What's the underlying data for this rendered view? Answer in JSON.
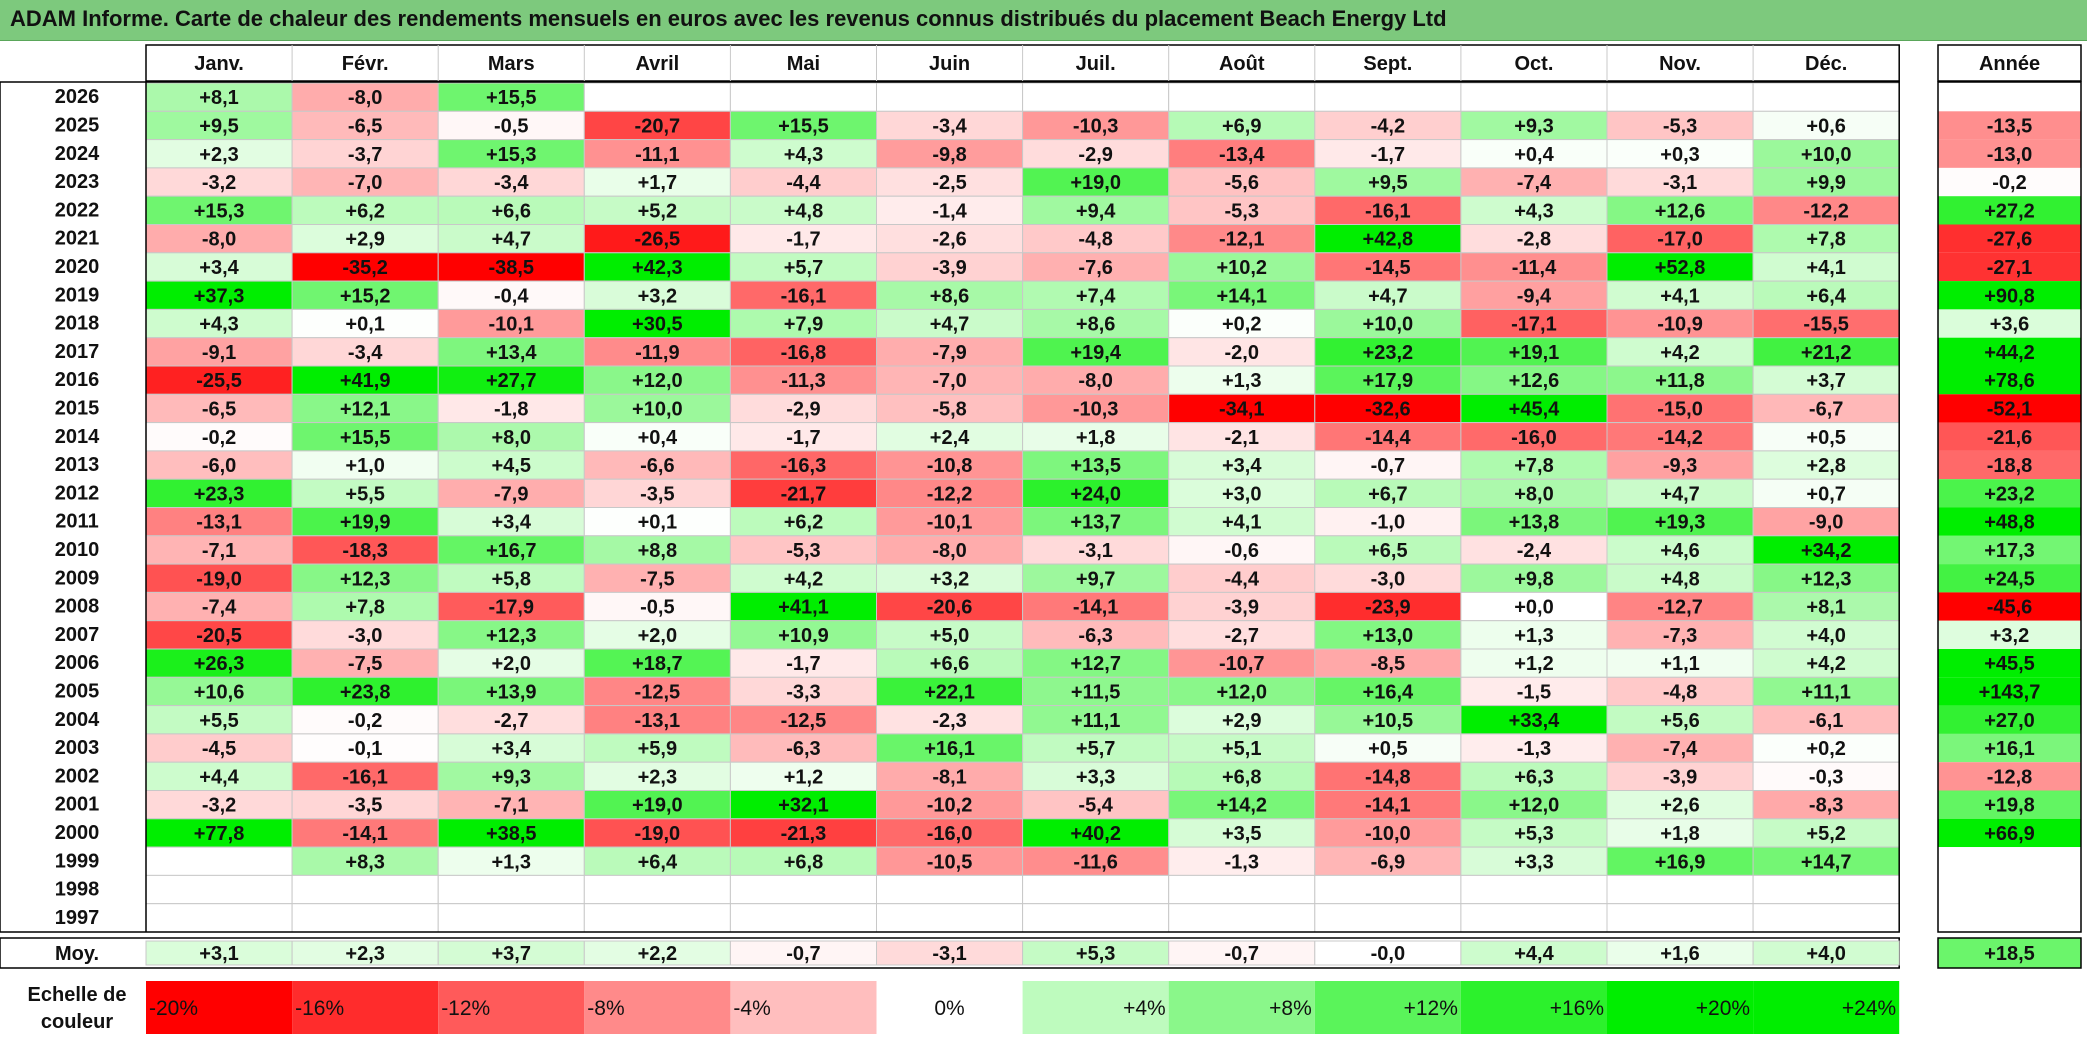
{
  "title": "ADAM Informe. Carte de chaleur des rendements mensuels en euros avec les revenus connus distribués du placement Beach Energy Ltd",
  "chart_data": {
    "type": "heatmap",
    "months": [
      "Janv.",
      "Févr.",
      "Mars",
      "Avril",
      "Mai",
      "Juin",
      "Juil.",
      "Août",
      "Sept.",
      "Oct.",
      "Nov.",
      "Déc."
    ],
    "year_header": "Année",
    "years": [
      "2026",
      "2025",
      "2024",
      "2023",
      "2022",
      "2021",
      "2020",
      "2019",
      "2018",
      "2017",
      "2016",
      "2015",
      "2014",
      "2013",
      "2012",
      "2011",
      "2010",
      "2009",
      "2008",
      "2007",
      "2006",
      "2005",
      "2004",
      "2003",
      "2002",
      "2001",
      "2000",
      "1999",
      "1998",
      "1997"
    ],
    "values": [
      [
        "+8,1",
        "-8,0",
        "+15,5",
        "",
        "",
        "",
        "",
        "",
        "",
        "",
        "",
        ""
      ],
      [
        "+9,5",
        "-6,5",
        "-0,5",
        "-20,7",
        "+15,5",
        "-3,4",
        "-10,3",
        "+6,9",
        "-4,2",
        "+9,3",
        "-5,3",
        "+0,6"
      ],
      [
        "+2,3",
        "-3,7",
        "+15,3",
        "-11,1",
        "+4,3",
        "-9,8",
        "-2,9",
        "-13,4",
        "-1,7",
        "+0,4",
        "+0,3",
        "+10,0"
      ],
      [
        "-3,2",
        "-7,0",
        "-3,4",
        "+1,7",
        "-4,4",
        "-2,5",
        "+19,0",
        "-5,6",
        "+9,5",
        "-7,4",
        "-3,1",
        "+9,9"
      ],
      [
        "+15,3",
        "+6,2",
        "+6,6",
        "+5,2",
        "+4,8",
        "-1,4",
        "+9,4",
        "-5,3",
        "-16,1",
        "+4,3",
        "+12,6",
        "-12,2"
      ],
      [
        "-8,0",
        "+2,9",
        "+4,7",
        "-26,5",
        "-1,7",
        "-2,6",
        "-4,8",
        "-12,1",
        "+42,8",
        "-2,8",
        "-17,0",
        "+7,8"
      ],
      [
        "+3,4",
        "-35,2",
        "-38,5",
        "+42,3",
        "+5,7",
        "-3,9",
        "-7,6",
        "+10,2",
        "-14,5",
        "-11,4",
        "+52,8",
        "+4,1"
      ],
      [
        "+37,3",
        "+15,2",
        "-0,4",
        "+3,2",
        "-16,1",
        "+8,6",
        "+7,4",
        "+14,1",
        "+4,7",
        "-9,4",
        "+4,1",
        "+6,4"
      ],
      [
        "+4,3",
        "+0,1",
        "-10,1",
        "+30,5",
        "+7,9",
        "+4,7",
        "+8,6",
        "+0,2",
        "+10,0",
        "-17,1",
        "-10,9",
        "-15,5"
      ],
      [
        "-9,1",
        "-3,4",
        "+13,4",
        "-11,9",
        "-16,8",
        "-7,9",
        "+19,4",
        "-2,0",
        "+23,2",
        "+19,1",
        "+4,2",
        "+21,2"
      ],
      [
        "-25,5",
        "+41,9",
        "+27,7",
        "+12,0",
        "-11,3",
        "-7,0",
        "-8,0",
        "+1,3",
        "+17,9",
        "+12,6",
        "+11,8",
        "+3,7"
      ],
      [
        "-6,5",
        "+12,1",
        "-1,8",
        "+10,0",
        "-2,9",
        "-5,8",
        "-10,3",
        "-34,1",
        "-32,6",
        "+45,4",
        "-15,0",
        "-6,7"
      ],
      [
        "-0,2",
        "+15,5",
        "+8,0",
        "+0,4",
        "-1,7",
        "+2,4",
        "+1,8",
        "-2,1",
        "-14,4",
        "-16,0",
        "-14,2",
        "+0,5"
      ],
      [
        "-6,0",
        "+1,0",
        "+4,5",
        "-6,6",
        "-16,3",
        "-10,8",
        "+13,5",
        "+3,4",
        "-0,7",
        "+7,8",
        "-9,3",
        "+2,8"
      ],
      [
        "+23,3",
        "+5,5",
        "-7,9",
        "-3,5",
        "-21,7",
        "-12,2",
        "+24,0",
        "+3,0",
        "+6,7",
        "+8,0",
        "+4,7",
        "+0,7"
      ],
      [
        "-13,1",
        "+19,9",
        "+3,4",
        "+0,1",
        "+6,2",
        "-10,1",
        "+13,7",
        "+4,1",
        "-1,0",
        "+13,8",
        "+19,3",
        "-9,0"
      ],
      [
        "-7,1",
        "-18,3",
        "+16,7",
        "+8,8",
        "-5,3",
        "-8,0",
        "-3,1",
        "-0,6",
        "+6,5",
        "-2,4",
        "+4,6",
        "+34,2"
      ],
      [
        "-19,0",
        "+12,3",
        "+5,8",
        "-7,5",
        "+4,2",
        "+3,2",
        "+9,7",
        "-4,4",
        "-3,0",
        "+9,8",
        "+4,8",
        "+12,3"
      ],
      [
        "-7,4",
        "+7,8",
        "-17,9",
        "-0,5",
        "+41,1",
        "-20,6",
        "-14,1",
        "-3,9",
        "-23,9",
        "+0,0",
        "-12,7",
        "+8,1"
      ],
      [
        "-20,5",
        "-3,0",
        "+12,3",
        "+2,0",
        "+10,9",
        "+5,0",
        "-6,3",
        "-2,7",
        "+13,0",
        "+1,3",
        "-7,3",
        "+4,0"
      ],
      [
        "+26,3",
        "-7,5",
        "+2,0",
        "+18,7",
        "-1,7",
        "+6,6",
        "+12,7",
        "-10,7",
        "-8,5",
        "+1,2",
        "+1,1",
        "+4,2"
      ],
      [
        "+10,6",
        "+23,8",
        "+13,9",
        "-12,5",
        "-3,3",
        "+22,1",
        "+11,5",
        "+12,0",
        "+16,4",
        "-1,5",
        "-4,8",
        "+11,1"
      ],
      [
        "+5,5",
        "-0,2",
        "-2,7",
        "-13,1",
        "-12,5",
        "-2,3",
        "+11,1",
        "+2,9",
        "+10,5",
        "+33,4",
        "+5,6",
        "-6,1"
      ],
      [
        "-4,5",
        "-0,1",
        "+3,4",
        "+5,9",
        "-6,3",
        "+16,1",
        "+5,7",
        "+5,1",
        "+0,5",
        "-1,3",
        "-7,4",
        "+0,2"
      ],
      [
        "+4,4",
        "-16,1",
        "+9,3",
        "+2,3",
        "+1,2",
        "-8,1",
        "+3,3",
        "+6,8",
        "-14,8",
        "+6,3",
        "-3,9",
        "-0,3"
      ],
      [
        "-3,2",
        "-3,5",
        "-7,1",
        "+19,0",
        "+32,1",
        "-10,2",
        "-5,4",
        "+14,2",
        "-14,1",
        "+12,0",
        "+2,6",
        "-8,3"
      ],
      [
        "+77,8",
        "-14,1",
        "+38,5",
        "-19,0",
        "-21,3",
        "-16,0",
        "+40,2",
        "+3,5",
        "-10,0",
        "+5,3",
        "+1,8",
        "+5,2"
      ],
      [
        "",
        "+8,3",
        "+1,3",
        "+6,4",
        "+6,8",
        "-10,5",
        "-11,6",
        "-1,3",
        "-6,9",
        "+3,3",
        "+16,9",
        "+14,7"
      ],
      [
        "",
        "",
        "",
        "",
        "",
        "",
        "",
        "",
        "",
        "",
        "",
        ""
      ],
      [
        "",
        "",
        "",
        "",
        "",
        "",
        "",
        "",
        "",
        "",
        "",
        ""
      ]
    ],
    "annual": [
      "",
      "-13,5",
      "-13,0",
      "-0,2",
      "+27,2",
      "-27,6",
      "-27,1",
      "+90,8",
      "+3,6",
      "+44,2",
      "+78,6",
      "-52,1",
      "-21,6",
      "-18,8",
      "+23,2",
      "+48,8",
      "+17,3",
      "+24,5",
      "-45,6",
      "+3,2",
      "+45,5",
      "+143,7",
      "+27,0",
      "+16,1",
      "-12,8",
      "+19,8",
      "+66,9",
      "",
      "",
      ""
    ],
    "average_label": "Moy.",
    "average": [
      "+3,1",
      "+2,3",
      "+3,7",
      "+2,2",
      "-0,7",
      "-3,1",
      "+5,3",
      "-0,7",
      "-0,0",
      "+4,4",
      "+1,6",
      "+4,0"
    ],
    "average_annual": "+18,5",
    "scale_label_line1": "Echelle de",
    "scale_label_line2": "couleur",
    "scale": [
      "-20%",
      "-16%",
      "-12%",
      "-8%",
      "-4%",
      "0%",
      "+4%",
      "+8%",
      "+12%",
      "+16%",
      "+20%",
      "+24%"
    ],
    "scale_values": [
      -20,
      -16,
      -12,
      -8,
      -4,
      0,
      4,
      8,
      12,
      16,
      20,
      24
    ],
    "colors": {
      "negative": "#ff0000",
      "positive": "#00ee00",
      "neutral": "#ffffff",
      "title_bar": "#7dc97d",
      "grid": "#c8c8c8",
      "border": "#000000"
    }
  }
}
